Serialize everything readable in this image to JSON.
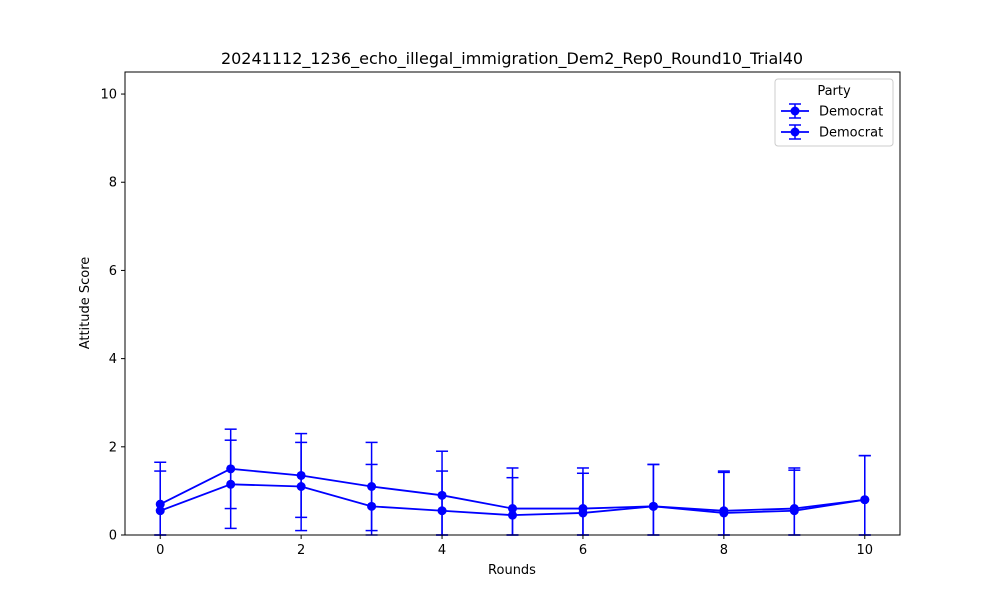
{
  "chart_data": {
    "type": "line",
    "title": "20241112_1236_echo_illegal_immigration_Dem2_Rep0_Round10_Trial40",
    "xlabel": "Rounds",
    "ylabel": "Attitude Score",
    "xlim": [
      -0.5,
      10.5
    ],
    "ylim": [
      0,
      10.5
    ],
    "xticks": [
      0,
      2,
      4,
      6,
      8,
      10
    ],
    "yticks": [
      0,
      2,
      4,
      6,
      8,
      10
    ],
    "grid": false,
    "legend": {
      "title": "Party",
      "placement": "top-right"
    },
    "x": [
      0,
      1,
      2,
      3,
      4,
      5,
      6,
      7,
      8,
      9,
      10
    ],
    "series": [
      {
        "name": "Democrat",
        "color": "#0000ff",
        "marker": "circle",
        "values": [
          0.7,
          1.5,
          1.35,
          1.1,
          0.9,
          0.6,
          0.6,
          0.65,
          0.55,
          0.6,
          0.8
        ],
        "error": [
          0.95,
          0.9,
          0.95,
          1.0,
          1.0,
          0.92,
          0.92,
          0.95,
          0.9,
          0.92,
          1.0
        ]
      },
      {
        "name": "Democrat",
        "color": "#0000ff",
        "marker": "circle",
        "values": [
          0.55,
          1.15,
          1.1,
          0.65,
          0.55,
          0.45,
          0.5,
          0.65,
          0.5,
          0.55,
          0.8
        ],
        "error": [
          0.9,
          1.0,
          1.0,
          0.95,
          0.9,
          0.85,
          0.9,
          0.95,
          0.92,
          0.92,
          1.0
        ]
      }
    ]
  }
}
